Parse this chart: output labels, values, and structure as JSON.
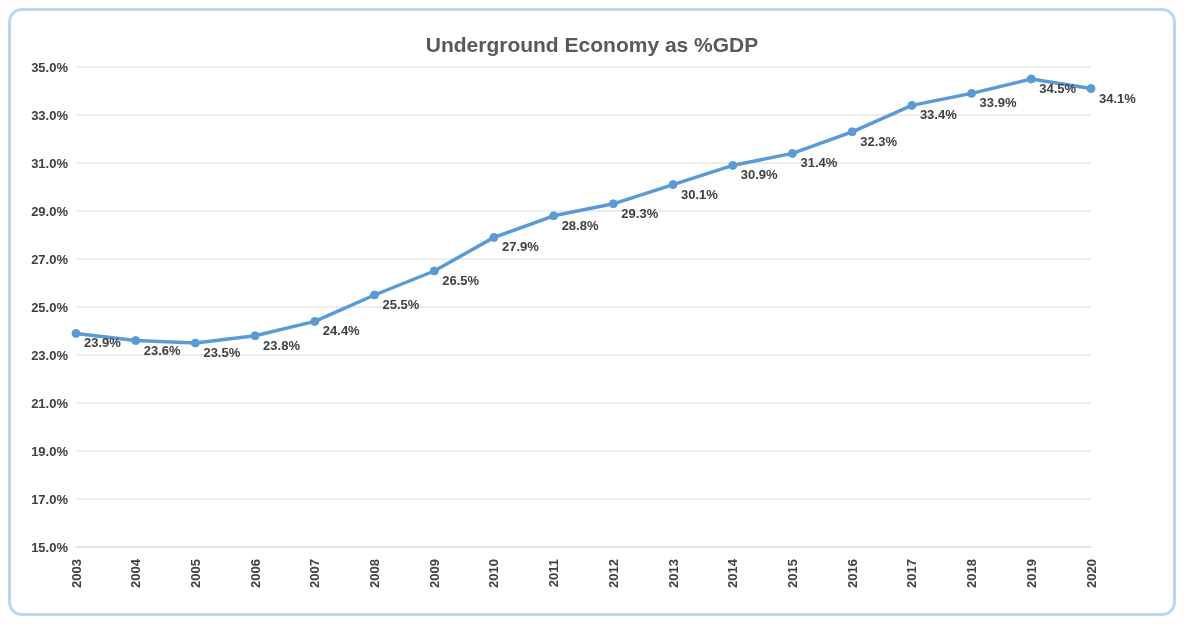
{
  "chart_data": {
    "type": "line",
    "title": "Underground Economy as %GDP",
    "categories": [
      "2003",
      "2004",
      "2005",
      "2006",
      "2007",
      "2008",
      "2009",
      "2010",
      "2011",
      "2012",
      "2013",
      "2014",
      "2015",
      "2016",
      "2017",
      "2018",
      "2019",
      "2020"
    ],
    "values": [
      23.9,
      23.6,
      23.5,
      23.8,
      24.4,
      25.5,
      26.5,
      27.9,
      28.8,
      29.3,
      30.1,
      30.9,
      31.4,
      32.3,
      33.4,
      33.9,
      34.5,
      34.1
    ],
    "value_labels": [
      "23.9%",
      "23.6%",
      "23.5%",
      "23.8%",
      "24.4%",
      "25.5%",
      "26.5%",
      "27.9%",
      "28.8%",
      "29.3%",
      "30.1%",
      "30.9%",
      "31.4%",
      "32.3%",
      "33.4%",
      "33.9%",
      "34.5%",
      "34.1%"
    ],
    "color": "#5b9bd5",
    "marker": "circle",
    "grid": "y",
    "ylim": [
      15,
      35
    ],
    "yticks": [
      {
        "value": 15,
        "label": "15.0%"
      },
      {
        "value": 17,
        "label": "17.0%"
      },
      {
        "value": 19,
        "label": "19.0%"
      },
      {
        "value": 21,
        "label": "21.0%"
      },
      {
        "value": 23,
        "label": "23.0%"
      },
      {
        "value": 25,
        "label": "25.0%"
      },
      {
        "value": 27,
        "label": "27.0%"
      },
      {
        "value": 29,
        "label": "29.0%"
      },
      {
        "value": 31,
        "label": "31.0%"
      },
      {
        "value": 33,
        "label": "33.0%"
      },
      {
        "value": 35,
        "label": "35.0%"
      }
    ]
  }
}
